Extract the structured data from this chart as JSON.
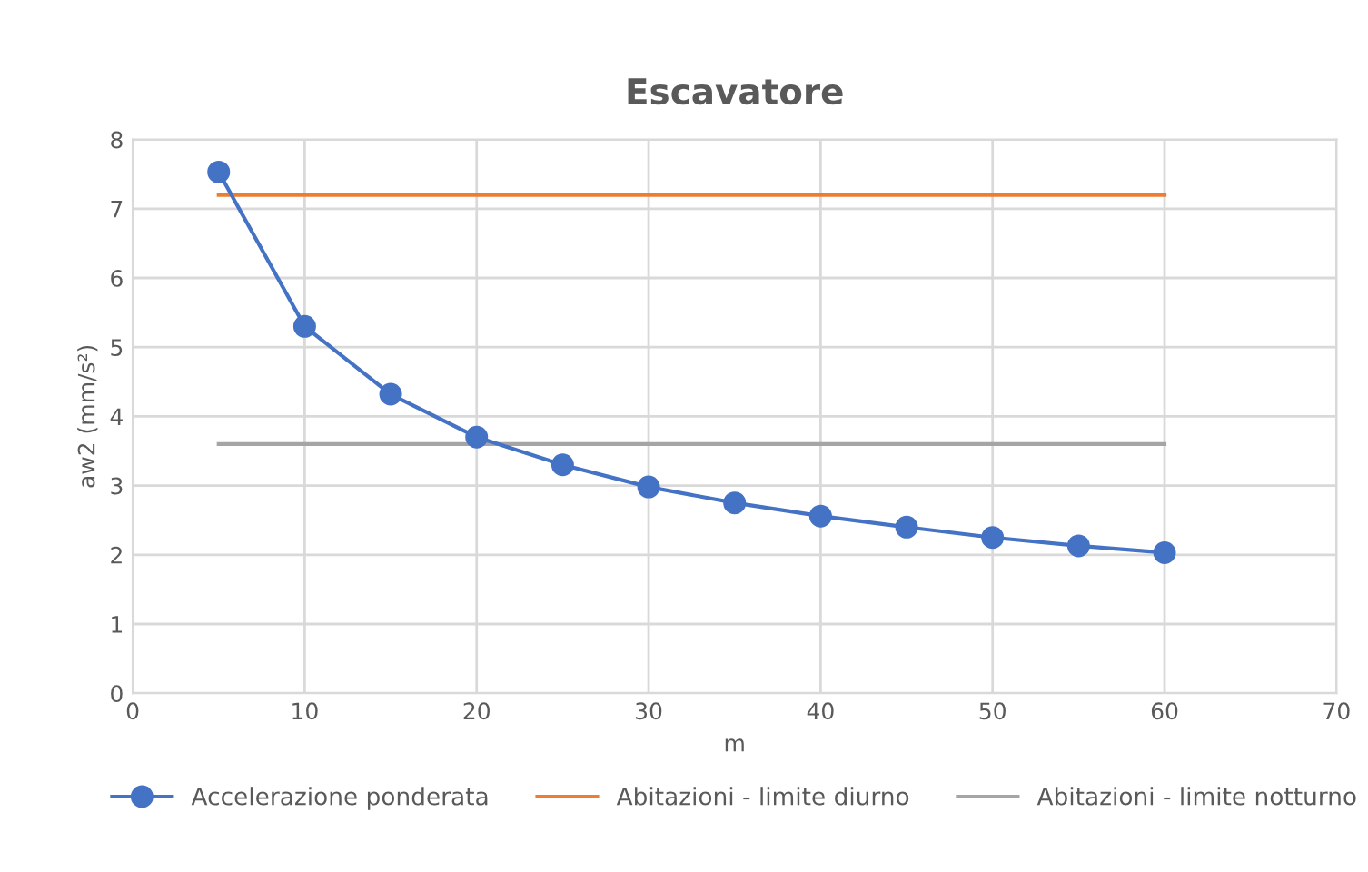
{
  "chart_data": {
    "type": "line",
    "title": "Escavatore",
    "xlabel": "m",
    "ylabel": "aw2 (mm/s²)",
    "xlim": [
      0,
      70
    ],
    "xticks": [
      0,
      10,
      20,
      30,
      40,
      50,
      60,
      70
    ],
    "ylim": [
      0,
      8
    ],
    "yticks": [
      0,
      1,
      2,
      3,
      4,
      5,
      6,
      7,
      8
    ],
    "grid": true,
    "legend": "bottom",
    "series": [
      {
        "name": "Accelerazione ponderata",
        "color": "#4472c4",
        "marker": "circle",
        "x": [
          5,
          10,
          15,
          20,
          25,
          30,
          35,
          40,
          45,
          50,
          55,
          60
        ],
        "values": [
          7.53,
          5.3,
          4.32,
          3.7,
          3.3,
          2.98,
          2.75,
          2.56,
          2.4,
          2.25,
          2.13,
          2.03
        ]
      },
      {
        "name": "Abitazioni - limite diurno",
        "color": "#ed7d31",
        "marker": "none",
        "x": [
          5,
          60
        ],
        "values": [
          7.2,
          7.2
        ]
      },
      {
        "name": "Abitazioni - limite notturno",
        "color": "#a5a5a5",
        "marker": "none",
        "x": [
          5,
          60
        ],
        "values": [
          3.6,
          3.6
        ]
      }
    ]
  }
}
